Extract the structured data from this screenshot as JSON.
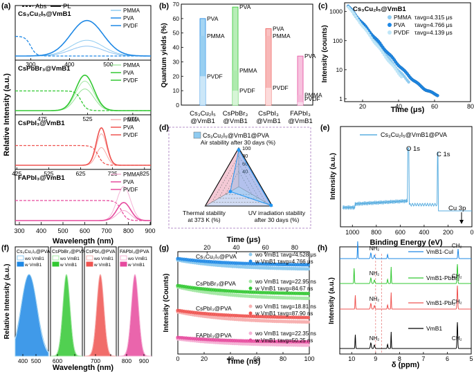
{
  "panel_letters": [
    "(a)",
    "(b)",
    "(c)",
    "(d)",
    "(e)",
    "(f)",
    "(g)",
    "(h)"
  ],
  "colors": {
    "cs": "#1e88e5",
    "cs_light": "#8fcbf0",
    "cspb": "#32c832",
    "cspb_light": "#a6e8a6",
    "cspi": "#ef5350",
    "cspi_light": "#f7b1b1",
    "fapb": "#e64a9e",
    "fapb_light": "#f5b3d6",
    "purple": "#b48fc8"
  },
  "chart_data": [
    {
      "panel": "a",
      "type": "line",
      "legend": [
        "Abs",
        "PL"
      ],
      "xlabel": "Wavelength (nm)",
      "ylabel": "Relative Intensity (a.u.)",
      "x_ticks": [
        "300",
        "400",
        "500",
        "600",
        "700",
        "800",
        "900"
      ],
      "series_names": [
        "PMMA",
        "PVA",
        "PVDF"
      ],
      "subplots": [
        {
          "label": "Cs₃Cu₂I₅@VmB1",
          "range": [
            260,
            610
          ],
          "ticks": [
            300,
            400,
            500
          ],
          "peak": 445,
          "width": 42,
          "heights": [
            0.4,
            0.9,
            0.25
          ],
          "abs_edge": 300
        },
        {
          "label": "CsPbBr₃@VmB1",
          "range": [
            445,
            595
          ],
          "ticks": [
            475,
            525,
            575
          ],
          "peak": 522,
          "width": 10,
          "heights": [
            0.75,
            0.9,
            0.55
          ],
          "abs_edge": 518
        },
        {
          "label": "CsPbI₃@VmB1",
          "range": [
            420,
            845
          ],
          "ticks": [
            425,
            525,
            625,
            725,
            825
          ],
          "peak": 690,
          "width": 16,
          "heights": [
            0.8,
            0.95,
            0.45
          ],
          "abs_edge": 680
        },
        {
          "label": "FAPbI₃@VmB1",
          "range": [
            300,
            900
          ],
          "ticks": [],
          "peak": 780,
          "width": 30,
          "heights": [
            0.85,
            0.45,
            0.25
          ],
          "abs_edge": 770
        }
      ]
    },
    {
      "panel": "b",
      "type": "bar",
      "ylabel": "Quantum yields (%)",
      "ylim": [
        0,
        70
      ],
      "y_ticks": [
        0,
        10,
        20,
        30,
        40,
        50,
        60,
        70
      ],
      "categories": [
        "Cs₃Cu₂I₅ @VmB1",
        "CsPbBr₃ @VmB1",
        "CsPbI₃ @VmB1",
        "FAPbI₃ @VmB1"
      ],
      "series": [
        {
          "name": "PVA",
          "values": [
            60,
            68,
            53,
            34
          ]
        },
        {
          "name": "PMMA",
          "values": [
            48,
            24,
            48,
            7
          ]
        },
        {
          "name": "PVDF",
          "values": [
            20,
            10,
            12,
            2
          ]
        }
      ]
    },
    {
      "panel": "c",
      "type": "scatter",
      "title": "Cs₃Cu₂I₅@VmB1",
      "xlabel": "Time (μs)",
      "ylabel": "Intensity (counts)",
      "xlim": [
        10,
        80
      ],
      "ylim_log": [
        1,
        2000
      ],
      "x_ticks": [
        20,
        40,
        60,
        80
      ],
      "y_ticks": [
        "1",
        "10",
        "100",
        "1000"
      ],
      "series": [
        {
          "name": "PMMA",
          "tau_text": "τavg=4.315 μs",
          "tau": 4.315
        },
        {
          "name": "PVA",
          "tau_text": "τavg=4.766 μs",
          "tau": 4.766
        },
        {
          "name": "PVDF",
          "tau_text": "τavg=4.139 μs",
          "tau": 4.139
        }
      ]
    },
    {
      "panel": "d",
      "type": "radar",
      "title": "Cs₃Cu₂I₅@VmB1@PVA",
      "axes": [
        "Air stability after 30 days (%)",
        "Thermal stability at 373 K (%)",
        "UV irradiation stability after 30 days (%)"
      ],
      "values": [
        96,
        40,
        97
      ],
      "ticks": [
        "100",
        "80",
        "60",
        "40"
      ]
    },
    {
      "panel": "e",
      "type": "line",
      "legend": "Cs₃Cu₂I₅@VmB1@PVA",
      "xlabel": "Binding Energy (eV)",
      "ylabel": "Intensity (a.u.)",
      "x_ticks": [
        "1000",
        "800",
        "600",
        "400",
        "200",
        "0"
      ],
      "peaks": [
        "O 1s",
        "C 1s",
        "Cu 3p"
      ]
    },
    {
      "panel": "f",
      "type": "line",
      "ylabel": "Relative Intensity (a.u.)",
      "xlabel": "Wavelength (nm)",
      "x_ticks": [
        "400",
        "500",
        "600",
        "700",
        "800",
        "900"
      ],
      "legend_labels": [
        "wo VmB1",
        "w VmB1"
      ],
      "subplots": [
        {
          "label": "Cs₃Cu₂I₅@PVA",
          "peak": 445
        },
        {
          "label": "CsPbBr₃@PVA",
          "peak": 522
        },
        {
          "label": "CsPbI₃@PVA",
          "peak": 690
        },
        {
          "label": "FAPbI₃@PVA",
          "peak": 780
        }
      ]
    },
    {
      "panel": "g",
      "type": "scatter",
      "xlabel": "Time (ns)",
      "top_xlabel": "Time (μs)",
      "ylabel": "Intensity (Counts)",
      "x_ticks": [
        "0",
        "20",
        "40",
        "60",
        "80",
        "100"
      ],
      "top_ticks": [
        "20",
        "40",
        "60",
        "80"
      ],
      "groups": [
        {
          "label": "Cs₃Cu₂I₅@PVA",
          "wo": "wo VmB1 τavg=4.528 μs",
          "w": "w VmB1 τavg=4.766 μs"
        },
        {
          "label": "CsPbBr₃@PVA",
          "wo": "wo VmB1 τavg=22.95 ns",
          "w": "w VmB1 τavg=84.67 ns"
        },
        {
          "label": "CsPbI₃@PVA",
          "wo": "wo VmB1 τavg=18.81 ns",
          "w": "w VmB1 τavg=87.90 ns"
        },
        {
          "label": "FAPbI₃@PVA",
          "wo": "wo VmB1 τavg=22.35 ns",
          "w": "w VmB1 τavg=50.25 ns"
        }
      ]
    },
    {
      "panel": "h",
      "type": "line",
      "xlabel": "δ (ppm)",
      "ylabel": "Intensity (a.u.)",
      "x_ticks": [
        "10",
        "9",
        "8",
        "7",
        "6",
        "5"
      ],
      "series": [
        {
          "name": "VmB1-CuI",
          "peak_labels": [
            "NH₂",
            "CH₂"
          ]
        },
        {
          "name": "VmB1-PbBr₂",
          "peak_labels": [
            "NH₂",
            "CH₂"
          ]
        },
        {
          "name": "VmB1-PbI₂",
          "peak_labels": [
            "NH₂",
            "CH₂"
          ]
        },
        {
          "name": "VmB1",
          "peak_labels": [
            "NH₂",
            "CH₂"
          ]
        }
      ]
    }
  ]
}
